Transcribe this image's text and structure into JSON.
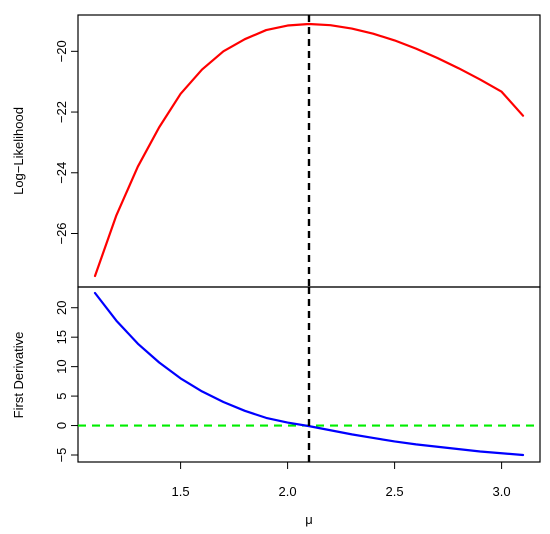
{
  "chart_data": [
    {
      "type": "line",
      "ylabel": "Log−Likelihood",
      "xlim": [
        1.1,
        3.1
      ],
      "ylim": [
        -27.4,
        -19.1
      ],
      "yticks": [
        -26,
        -24,
        -22,
        -20
      ],
      "ytick_labels": [
        "−26",
        "−24",
        "−22",
        "−20"
      ],
      "x": [
        1.1,
        1.2,
        1.3,
        1.4,
        1.5,
        1.6,
        1.7,
        1.8,
        1.9,
        2.0,
        2.1,
        2.2,
        2.3,
        2.4,
        2.5,
        2.6,
        2.7,
        2.8,
        2.9,
        3.0,
        3.1
      ],
      "series": [
        {
          "color": "#ff0000",
          "values": [
            -27.4,
            -25.4,
            -23.8,
            -22.5,
            -21.4,
            -20.6,
            -20.0,
            -19.6,
            -19.3,
            -19.15,
            -19.1,
            -19.14,
            -19.25,
            -19.42,
            -19.64,
            -19.91,
            -20.22,
            -20.56,
            -20.93,
            -21.33,
            -22.12
          ]
        }
      ],
      "vline": {
        "x": 2.1,
        "color": "#000000",
        "style": "dashed"
      },
      "grid": false
    },
    {
      "type": "line",
      "ylabel": "First Derivative",
      "xlabel": "μ",
      "xlim": [
        1.1,
        3.1
      ],
      "ylim": [
        -5,
        22.5
      ],
      "xticks": [
        1.5,
        2.0,
        2.5,
        3.0
      ],
      "xtick_labels": [
        "1.5",
        "2.0",
        "2.5",
        "3.0"
      ],
      "yticks": [
        -5,
        0,
        5,
        10,
        15,
        20
      ],
      "ytick_labels": [
        "−5",
        "0",
        "5",
        "10",
        "15",
        "20"
      ],
      "x": [
        1.1,
        1.2,
        1.3,
        1.4,
        1.5,
        1.6,
        1.7,
        1.8,
        1.9,
        2.0,
        2.1,
        2.2,
        2.3,
        2.4,
        2.5,
        2.6,
        2.7,
        2.8,
        2.9,
        3.0,
        3.1
      ],
      "series": [
        {
          "color": "#0000ff",
          "values": [
            22.5,
            17.8,
            13.9,
            10.7,
            8.0,
            5.8,
            4.0,
            2.5,
            1.3,
            0.5,
            -0.1,
            -0.8,
            -1.5,
            -2.1,
            -2.7,
            -3.2,
            -3.6,
            -4.0,
            -4.4,
            -4.7,
            -5.0
          ]
        }
      ],
      "hline": {
        "y": 0,
        "color": "#00ee00",
        "style": "dashed"
      },
      "vline": {
        "x": 2.1,
        "color": "#000000",
        "style": "dashed"
      },
      "grid": false
    }
  ]
}
